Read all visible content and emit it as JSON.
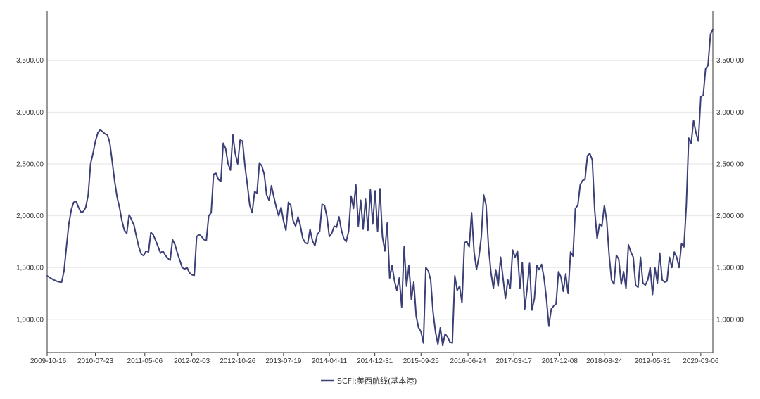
{
  "chart_data": {
    "type": "line",
    "series": [
      {
        "name": "SCFI:美西航线(基本港)",
        "color": "#3b3f77",
        "points": [
          [
            "2009-10-16",
            1420
          ],
          [
            "2009-10-30",
            1405
          ],
          [
            "2009-11-13",
            1390
          ],
          [
            "2009-11-27",
            1378
          ],
          [
            "2009-12-11",
            1368
          ],
          [
            "2009-12-25",
            1362
          ],
          [
            "2010-01-08",
            1358
          ],
          [
            "2010-01-22",
            1470
          ],
          [
            "2010-02-05",
            1700
          ],
          [
            "2010-02-19",
            1920
          ],
          [
            "2010-03-05",
            2060
          ],
          [
            "2010-03-19",
            2130
          ],
          [
            "2010-04-02",
            2140
          ],
          [
            "2010-04-16",
            2080
          ],
          [
            "2010-04-30",
            2035
          ],
          [
            "2010-05-14",
            2040
          ],
          [
            "2010-05-28",
            2080
          ],
          [
            "2010-06-11",
            2200
          ],
          [
            "2010-06-25",
            2500
          ],
          [
            "2010-07-09",
            2600
          ],
          [
            "2010-07-23",
            2720
          ],
          [
            "2010-08-06",
            2800
          ],
          [
            "2010-08-20",
            2830
          ],
          [
            "2010-09-03",
            2810
          ],
          [
            "2010-09-17",
            2790
          ],
          [
            "2010-10-01",
            2780
          ],
          [
            "2010-10-15",
            2700
          ],
          [
            "2010-10-29",
            2520
          ],
          [
            "2010-11-12",
            2330
          ],
          [
            "2010-11-26",
            2180
          ],
          [
            "2010-12-10",
            2080
          ],
          [
            "2010-12-24",
            1950
          ],
          [
            "2011-01-07",
            1860
          ],
          [
            "2011-01-21",
            1830
          ],
          [
            "2011-02-04",
            2010
          ],
          [
            "2011-02-18",
            1960
          ],
          [
            "2011-03-04",
            1910
          ],
          [
            "2011-03-18",
            1800
          ],
          [
            "2011-04-01",
            1700
          ],
          [
            "2011-04-15",
            1630
          ],
          [
            "2011-04-29",
            1615
          ],
          [
            "2011-05-13",
            1660
          ],
          [
            "2011-05-27",
            1650
          ],
          [
            "2011-06-10",
            1840
          ],
          [
            "2011-06-24",
            1815
          ],
          [
            "2011-07-08",
            1760
          ],
          [
            "2011-07-22",
            1700
          ],
          [
            "2011-08-05",
            1640
          ],
          [
            "2011-08-19",
            1660
          ],
          [
            "2011-09-02",
            1620
          ],
          [
            "2011-09-16",
            1590
          ],
          [
            "2011-09-30",
            1570
          ],
          [
            "2011-10-14",
            1770
          ],
          [
            "2011-10-28",
            1720
          ],
          [
            "2011-11-11",
            1640
          ],
          [
            "2011-11-25",
            1570
          ],
          [
            "2011-12-09",
            1500
          ],
          [
            "2011-12-23",
            1485
          ],
          [
            "2012-01-06",
            1500
          ],
          [
            "2012-01-20",
            1450
          ],
          [
            "2012-02-03",
            1430
          ],
          [
            "2012-02-17",
            1425
          ],
          [
            "2012-03-02",
            1800
          ],
          [
            "2012-03-16",
            1820
          ],
          [
            "2012-03-30",
            1800
          ],
          [
            "2012-04-13",
            1770
          ],
          [
            "2012-04-27",
            1760
          ],
          [
            "2012-05-11",
            2000
          ],
          [
            "2012-05-25",
            2030
          ],
          [
            "2012-06-08",
            2400
          ],
          [
            "2012-06-22",
            2410
          ],
          [
            "2012-07-06",
            2350
          ],
          [
            "2012-07-20",
            2330
          ],
          [
            "2012-08-03",
            2700
          ],
          [
            "2012-08-17",
            2650
          ],
          [
            "2012-08-31",
            2500
          ],
          [
            "2012-09-14",
            2440
          ],
          [
            "2012-09-28",
            2780
          ],
          [
            "2012-10-12",
            2600
          ],
          [
            "2012-10-26",
            2500
          ],
          [
            "2012-11-09",
            2730
          ],
          [
            "2012-11-23",
            2720
          ],
          [
            "2012-12-07",
            2480
          ],
          [
            "2012-12-21",
            2300
          ],
          [
            "2013-01-04",
            2100
          ],
          [
            "2013-01-18",
            2030
          ],
          [
            "2013-02-01",
            2230
          ],
          [
            "2013-02-15",
            2220
          ],
          [
            "2013-03-01",
            2510
          ],
          [
            "2013-03-15",
            2480
          ],
          [
            "2013-03-29",
            2400
          ],
          [
            "2013-04-12",
            2200
          ],
          [
            "2013-04-26",
            2150
          ],
          [
            "2013-05-10",
            2290
          ],
          [
            "2013-05-24",
            2180
          ],
          [
            "2013-06-07",
            2080
          ],
          [
            "2013-06-21",
            2000
          ],
          [
            "2013-07-05",
            2080
          ],
          [
            "2013-07-19",
            1950
          ],
          [
            "2013-08-02",
            1860
          ],
          [
            "2013-08-16",
            2130
          ],
          [
            "2013-08-30",
            2100
          ],
          [
            "2013-09-13",
            1950
          ],
          [
            "2013-09-27",
            1900
          ],
          [
            "2013-10-11",
            1990
          ],
          [
            "2013-10-25",
            1900
          ],
          [
            "2013-11-08",
            1780
          ],
          [
            "2013-11-22",
            1740
          ],
          [
            "2013-12-06",
            1730
          ],
          [
            "2013-12-20",
            1870
          ],
          [
            "2014-01-03",
            1760
          ],
          [
            "2014-01-17",
            1710
          ],
          [
            "2014-01-31",
            1820
          ],
          [
            "2014-02-14",
            1850
          ],
          [
            "2014-02-28",
            2110
          ],
          [
            "2014-03-14",
            2100
          ],
          [
            "2014-03-28",
            1990
          ],
          [
            "2014-04-11",
            1800
          ],
          [
            "2014-04-25",
            1830
          ],
          [
            "2014-05-09",
            1900
          ],
          [
            "2014-05-23",
            1890
          ],
          [
            "2014-06-06",
            1990
          ],
          [
            "2014-06-20",
            1860
          ],
          [
            "2014-07-04",
            1780
          ],
          [
            "2014-07-18",
            1750
          ],
          [
            "2014-08-01",
            1850
          ],
          [
            "2014-08-15",
            2190
          ],
          [
            "2014-08-29",
            2070
          ],
          [
            "2014-09-12",
            2300
          ],
          [
            "2014-09-26",
            1900
          ],
          [
            "2014-10-10",
            2150
          ],
          [
            "2014-10-24",
            1870
          ],
          [
            "2014-11-07",
            2160
          ],
          [
            "2014-11-21",
            1860
          ],
          [
            "2014-12-05",
            2250
          ],
          [
            "2014-12-19",
            1920
          ],
          [
            "2015-01-02",
            2240
          ],
          [
            "2015-01-16",
            1850
          ],
          [
            "2015-01-30",
            2260
          ],
          [
            "2015-02-13",
            1800
          ],
          [
            "2015-02-27",
            1660
          ],
          [
            "2015-03-13",
            1930
          ],
          [
            "2015-03-27",
            1400
          ],
          [
            "2015-04-10",
            1520
          ],
          [
            "2015-04-24",
            1370
          ],
          [
            "2015-05-08",
            1280
          ],
          [
            "2015-05-22",
            1400
          ],
          [
            "2015-06-05",
            1120
          ],
          [
            "2015-06-19",
            1700
          ],
          [
            "2015-07-03",
            1320
          ],
          [
            "2015-07-17",
            1520
          ],
          [
            "2015-07-31",
            1190
          ],
          [
            "2015-08-14",
            1360
          ],
          [
            "2015-08-28",
            1030
          ],
          [
            "2015-09-11",
            920
          ],
          [
            "2015-09-25",
            880
          ],
          [
            "2015-10-09",
            770
          ],
          [
            "2015-10-23",
            1500
          ],
          [
            "2015-11-06",
            1470
          ],
          [
            "2015-11-20",
            1380
          ],
          [
            "2015-12-04",
            1070
          ],
          [
            "2015-12-18",
            880
          ],
          [
            "2016-01-01",
            760
          ],
          [
            "2016-01-15",
            920
          ],
          [
            "2016-01-29",
            750
          ],
          [
            "2016-02-12",
            860
          ],
          [
            "2016-02-26",
            830
          ],
          [
            "2016-03-11",
            780
          ],
          [
            "2016-03-25",
            770
          ],
          [
            "2016-04-08",
            1420
          ],
          [
            "2016-04-22",
            1280
          ],
          [
            "2016-05-06",
            1320
          ],
          [
            "2016-05-20",
            1160
          ],
          [
            "2016-06-03",
            1740
          ],
          [
            "2016-06-17",
            1750
          ],
          [
            "2016-07-01",
            1700
          ],
          [
            "2016-07-15",
            2030
          ],
          [
            "2016-07-29",
            1650
          ],
          [
            "2016-08-12",
            1480
          ],
          [
            "2016-08-26",
            1600
          ],
          [
            "2016-09-09",
            1800
          ],
          [
            "2016-09-23",
            2200
          ],
          [
            "2016-10-07",
            2100
          ],
          [
            "2016-10-21",
            1700
          ],
          [
            "2016-11-04",
            1450
          ],
          [
            "2016-11-18",
            1300
          ],
          [
            "2016-12-02",
            1480
          ],
          [
            "2016-12-16",
            1320
          ],
          [
            "2016-12-30",
            1600
          ],
          [
            "2017-01-13",
            1400
          ],
          [
            "2017-01-27",
            1200
          ],
          [
            "2017-02-10",
            1380
          ],
          [
            "2017-02-24",
            1300
          ],
          [
            "2017-03-10",
            1670
          ],
          [
            "2017-03-24",
            1600
          ],
          [
            "2017-04-07",
            1660
          ],
          [
            "2017-04-21",
            1300
          ],
          [
            "2017-05-05",
            1550
          ],
          [
            "2017-05-19",
            1100
          ],
          [
            "2017-06-02",
            1300
          ],
          [
            "2017-06-16",
            1540
          ],
          [
            "2017-06-30",
            1090
          ],
          [
            "2017-07-14",
            1200
          ],
          [
            "2017-07-28",
            1520
          ],
          [
            "2017-08-11",
            1480
          ],
          [
            "2017-08-25",
            1530
          ],
          [
            "2017-09-08",
            1400
          ],
          [
            "2017-09-22",
            1200
          ],
          [
            "2017-10-06",
            940
          ],
          [
            "2017-10-20",
            1100
          ],
          [
            "2017-11-03",
            1130
          ],
          [
            "2017-11-17",
            1150
          ],
          [
            "2017-12-01",
            1460
          ],
          [
            "2017-12-15",
            1410
          ],
          [
            "2017-12-29",
            1270
          ],
          [
            "2018-01-12",
            1440
          ],
          [
            "2018-01-26",
            1250
          ],
          [
            "2018-02-09",
            1650
          ],
          [
            "2018-02-23",
            1610
          ],
          [
            "2018-03-09",
            2070
          ],
          [
            "2018-03-23",
            2100
          ],
          [
            "2018-04-06",
            2300
          ],
          [
            "2018-04-20",
            2340
          ],
          [
            "2018-05-04",
            2350
          ],
          [
            "2018-05-18",
            2580
          ],
          [
            "2018-06-01",
            2600
          ],
          [
            "2018-06-15",
            2540
          ],
          [
            "2018-06-29",
            2050
          ],
          [
            "2018-07-13",
            1780
          ],
          [
            "2018-07-27",
            1920
          ],
          [
            "2018-08-10",
            1900
          ],
          [
            "2018-08-24",
            2100
          ],
          [
            "2018-09-07",
            1950
          ],
          [
            "2018-09-21",
            1620
          ],
          [
            "2018-10-05",
            1380
          ],
          [
            "2018-10-19",
            1340
          ],
          [
            "2018-11-02",
            1620
          ],
          [
            "2018-11-16",
            1580
          ],
          [
            "2018-11-30",
            1340
          ],
          [
            "2018-12-14",
            1460
          ],
          [
            "2018-12-28",
            1300
          ],
          [
            "2019-01-11",
            1720
          ],
          [
            "2019-01-25",
            1650
          ],
          [
            "2019-02-08",
            1600
          ],
          [
            "2019-02-22",
            1330
          ],
          [
            "2019-03-08",
            1310
          ],
          [
            "2019-03-22",
            1600
          ],
          [
            "2019-04-05",
            1350
          ],
          [
            "2019-04-19",
            1330
          ],
          [
            "2019-05-03",
            1380
          ],
          [
            "2019-05-17",
            1500
          ],
          [
            "2019-05-31",
            1240
          ],
          [
            "2019-06-14",
            1500
          ],
          [
            "2019-06-28",
            1350
          ],
          [
            "2019-07-12",
            1640
          ],
          [
            "2019-07-26",
            1380
          ],
          [
            "2019-08-09",
            1360
          ],
          [
            "2019-08-23",
            1370
          ],
          [
            "2019-09-06",
            1600
          ],
          [
            "2019-09-20",
            1500
          ],
          [
            "2019-10-04",
            1650
          ],
          [
            "2019-10-18",
            1600
          ],
          [
            "2019-11-01",
            1500
          ],
          [
            "2019-11-15",
            1730
          ],
          [
            "2019-11-29",
            1700
          ],
          [
            "2019-12-13",
            2100
          ],
          [
            "2019-12-27",
            2750
          ],
          [
            "2020-01-10",
            2700
          ],
          [
            "2020-01-24",
            2920
          ],
          [
            "2020-02-07",
            2800
          ],
          [
            "2020-02-21",
            2720
          ],
          [
            "2020-03-06",
            3150
          ],
          [
            "2020-03-20",
            3160
          ],
          [
            "2020-04-03",
            3420
          ],
          [
            "2020-04-17",
            3450
          ],
          [
            "2020-05-01",
            3750
          ],
          [
            "2020-05-15",
            3800
          ]
        ]
      }
    ],
    "x_tick_labels": [
      "2009-10-16",
      "2010-07-23",
      "2011-05-06",
      "2012-02-03",
      "2012-10-26",
      "2013-07-19",
      "2014-04-11",
      "2014-12-31",
      "2015-09-25",
      "2016-06-24",
      "2017-03-17",
      "2017-12-08",
      "2018-08-24",
      "2019-05-31",
      "2020-03-06"
    ],
    "y_ticks": [
      1000,
      1500,
      2000,
      2500,
      3000,
      3500
    ],
    "y_tick_labels": [
      "1,000.00",
      "1,500.00",
      "2,000.00",
      "2,500.00",
      "3,000.00",
      "3,500.00"
    ],
    "xlim": [
      "2009-10-16",
      "2020-05-15"
    ],
    "ylim": [
      680,
      3980
    ],
    "axes": "left-and-right",
    "grid": "horizontal",
    "legend": "bottom-center",
    "title": "",
    "xlabel": "",
    "ylabel": ""
  }
}
